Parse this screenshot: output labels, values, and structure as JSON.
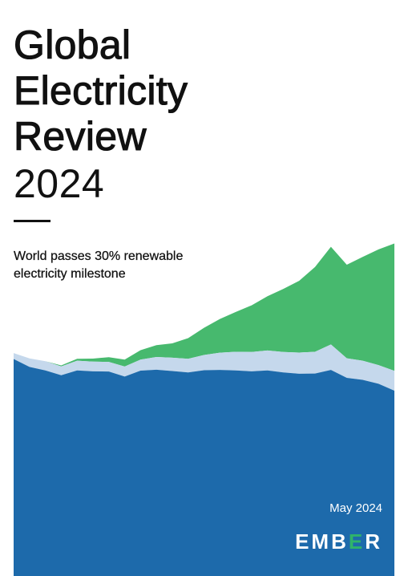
{
  "cover": {
    "title_lines": [
      "Global",
      "Electricity",
      "Review"
    ],
    "year": "2024",
    "subtitle": "World passes 30% renewable\nelectricity milestone",
    "date": "May 2024",
    "logo_text_parts": [
      "EMB",
      "E",
      "R"
    ]
  },
  "colors": {
    "green": "#47b96e",
    "light_blue": "#c5d8ec",
    "dark_blue": "#1d6aab",
    "logo_accent": "#2fb36a"
  },
  "chart_data": {
    "type": "area",
    "stacked": true,
    "x": [
      1,
      2,
      3,
      4,
      5,
      6,
      7,
      8,
      9,
      10,
      11,
      12,
      13,
      14,
      15,
      16,
      17,
      18,
      19,
      20,
      21,
      22,
      23,
      24,
      25
    ],
    "series": [
      {
        "values": [
          75.0,
          70.7,
          68.8,
          66.2,
          68.8,
          68.3,
          68.2,
          65.5,
          68.7,
          69.2,
          68.5,
          67.7,
          68.9,
          69.1,
          68.8,
          68.3,
          68.8,
          67.7,
          67.0,
          67.1,
          69.1,
          64.8,
          63.7,
          61.6,
          57.8
        ]
      },
      {
        "values": [
          3.2,
          4.6,
          5.0,
          4.8,
          5.3,
          5.3,
          5.2,
          5.4,
          6.0,
          6.9,
          7.2,
          7.4,
          8.3,
          9.3,
          10.1,
          10.5,
          10.8,
          11.1,
          11.5,
          11.8,
          13.8,
          10.6,
          10.4,
          10.1,
          10.8
        ]
      },
      {
        "values": [
          0.0,
          0.0,
          0.0,
          0.5,
          1.0,
          1.6,
          2.6,
          3.8,
          5.1,
          6.4,
          7.8,
          11.2,
          14.7,
          18.3,
          21.6,
          25.3,
          29.4,
          34.2,
          38.9,
          46.0,
          52.9,
          50.7,
          56.2,
          62.7,
          69.0
        ]
      }
    ]
  }
}
